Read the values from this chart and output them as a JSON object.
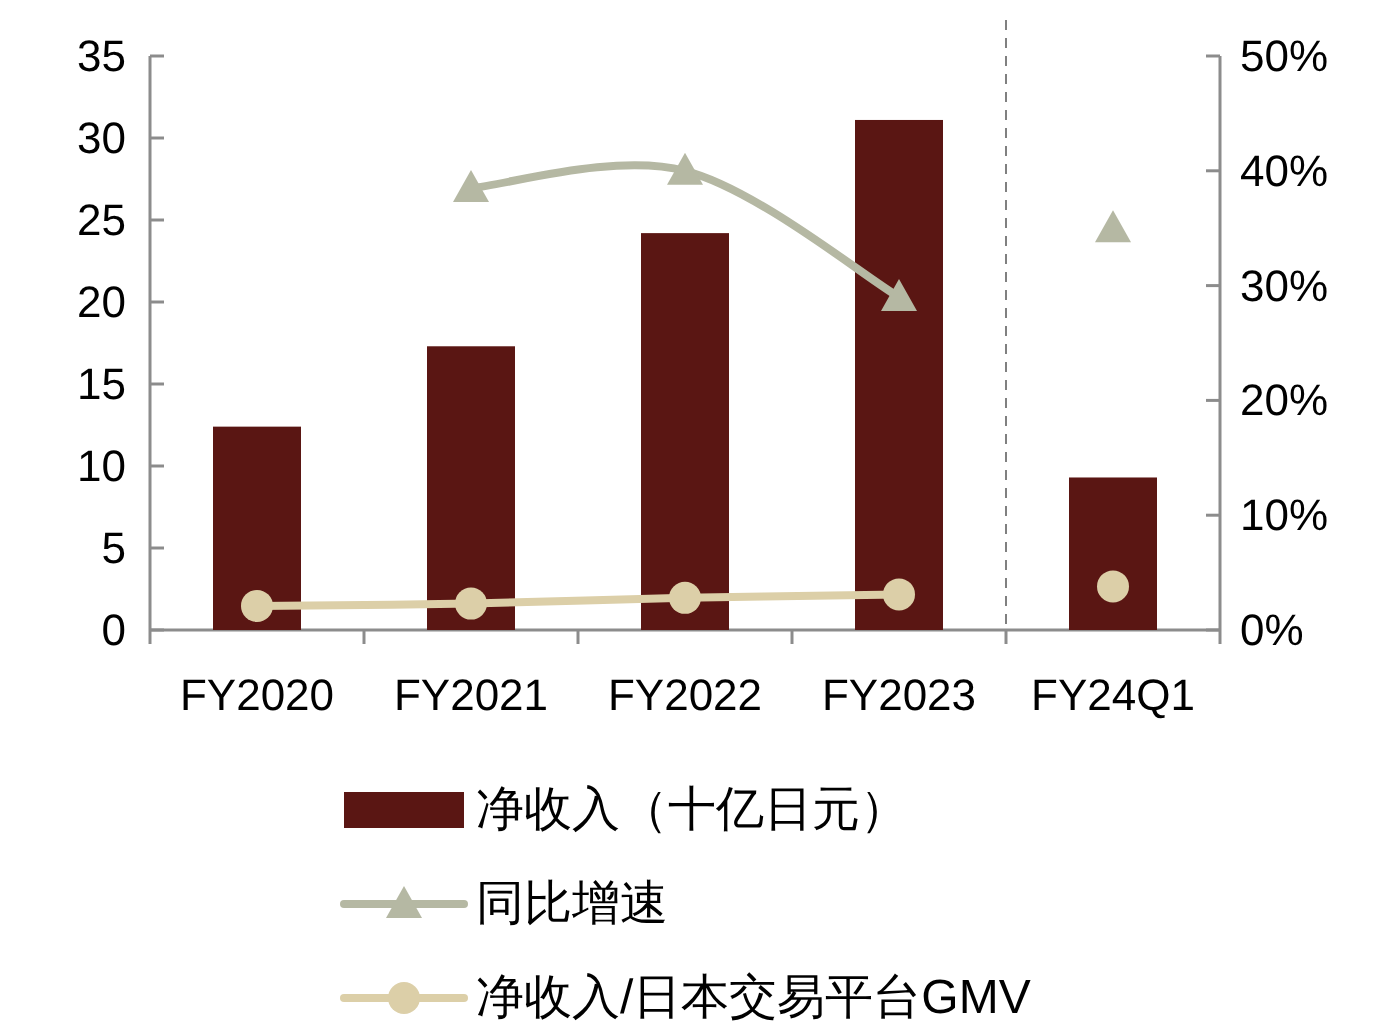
{
  "chart_data": {
    "type": "bar",
    "categories": [
      "FY2020",
      "FY2021",
      "FY2022",
      "FY2023",
      "FY24Q1"
    ],
    "ylim": [
      0,
      35
    ],
    "yticks": [
      0,
      5,
      10,
      15,
      20,
      25,
      30,
      35
    ],
    "y2lim": [
      0,
      50
    ],
    "y2ticks": [
      {
        "value": 0,
        "label": "0%"
      },
      {
        "value": 10,
        "label": "10%"
      },
      {
        "value": 20,
        "label": "20%"
      },
      {
        "value": 30,
        "label": "30%"
      },
      {
        "value": 40,
        "label": "40%"
      },
      {
        "value": 50,
        "label": "50%"
      }
    ],
    "series": [
      {
        "name": "净收入（十亿日元）",
        "color": "#5a1613",
        "values": [
          12.4,
          17.3,
          24.2,
          31.1,
          9.3
        ]
      },
      {
        "name": "同比增速",
        "type": "line",
        "axis": "y2",
        "marker": "triangle",
        "color": "#b5b8a3",
        "values": [
          null,
          38.5,
          40,
          29,
          null
        ]
      },
      {
        "type": "scatter",
        "axis": "y2",
        "marker": "triangle",
        "color": "#b5b8a3",
        "values": [
          null,
          null,
          null,
          null,
          35
        ]
      },
      {
        "name": "净收入/日本交易平台GMV",
        "type": "line",
        "axis": "y2",
        "marker": "circle",
        "color": "#dccfa8",
        "values": [
          2.1,
          2.3,
          2.8,
          3.1,
          null
        ]
      },
      {
        "type": "scatter",
        "axis": "y2",
        "marker": "circle",
        "color": "#dccfa8",
        "values": [
          null,
          null,
          null,
          null,
          3.8
        ]
      }
    ],
    "grid": false,
    "legend": "bottom"
  }
}
